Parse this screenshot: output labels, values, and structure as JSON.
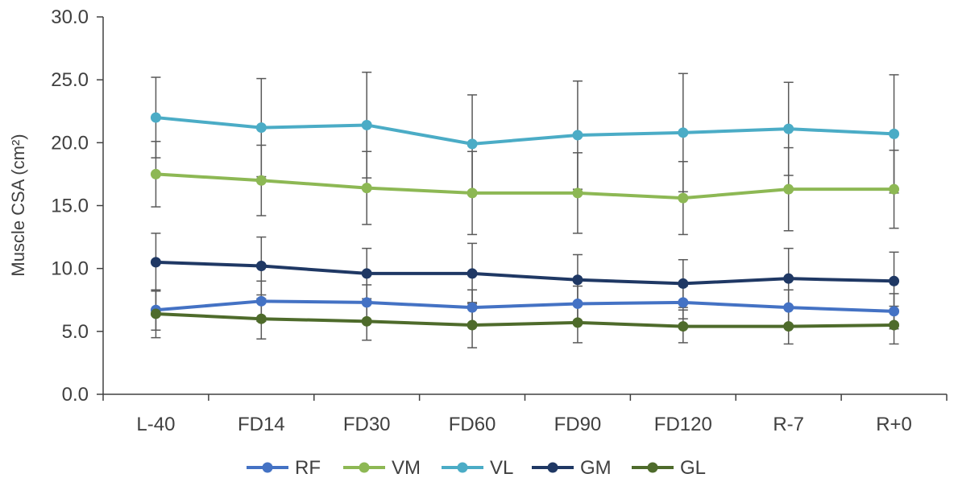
{
  "chart_data": {
    "type": "line",
    "title": "",
    "xlabel": "",
    "ylabel": "Muscle CSA (cm²)",
    "ylim": [
      0,
      30
    ],
    "yticks": [
      "0.0",
      "5.0",
      "10.0",
      "15.0",
      "20.0",
      "25.0",
      "30.0"
    ],
    "categories": [
      "L-40",
      "FD14",
      "FD30",
      "FD60",
      "FD90",
      "FD120",
      "R-7",
      "R+0"
    ],
    "grid": false,
    "legend_position": "bottom",
    "series": [
      {
        "name": "RF",
        "color": "#4472C4",
        "values": [
          6.7,
          7.4,
          7.3,
          6.9,
          7.2,
          7.3,
          6.9,
          6.6
        ],
        "error": [
          1.6,
          1.6,
          1.4,
          1.4,
          1.4,
          1.3,
          1.4,
          1.4
        ]
      },
      {
        "name": "VM",
        "color": "#8DB854",
        "values": [
          17.5,
          17.0,
          16.4,
          16.0,
          16.0,
          15.6,
          16.3,
          16.3
        ],
        "error": [
          2.6,
          2.8,
          2.9,
          3.3,
          3.2,
          2.9,
          3.3,
          3.1
        ]
      },
      {
        "name": "VL",
        "color": "#4BACC6",
        "values": [
          22.0,
          21.2,
          21.4,
          19.9,
          20.6,
          20.8,
          21.1,
          20.7
        ],
        "error": [
          3.2,
          3.9,
          4.2,
          3.9,
          4.3,
          4.7,
          3.7,
          4.7
        ]
      },
      {
        "name": "GM",
        "color": "#1F3864",
        "values": [
          10.5,
          10.2,
          9.6,
          9.6,
          9.1,
          8.8,
          9.2,
          9.0
        ],
        "error": [
          2.3,
          2.3,
          2.0,
          2.4,
          2.0,
          1.9,
          2.4,
          2.3
        ]
      },
      {
        "name": "GL",
        "color": "#4E6B2B",
        "values": [
          6.4,
          6.0,
          5.8,
          5.5,
          5.7,
          5.4,
          5.4,
          5.5
        ],
        "error": [
          1.9,
          1.6,
          1.5,
          1.8,
          1.6,
          1.3,
          1.4,
          1.5
        ]
      }
    ]
  }
}
